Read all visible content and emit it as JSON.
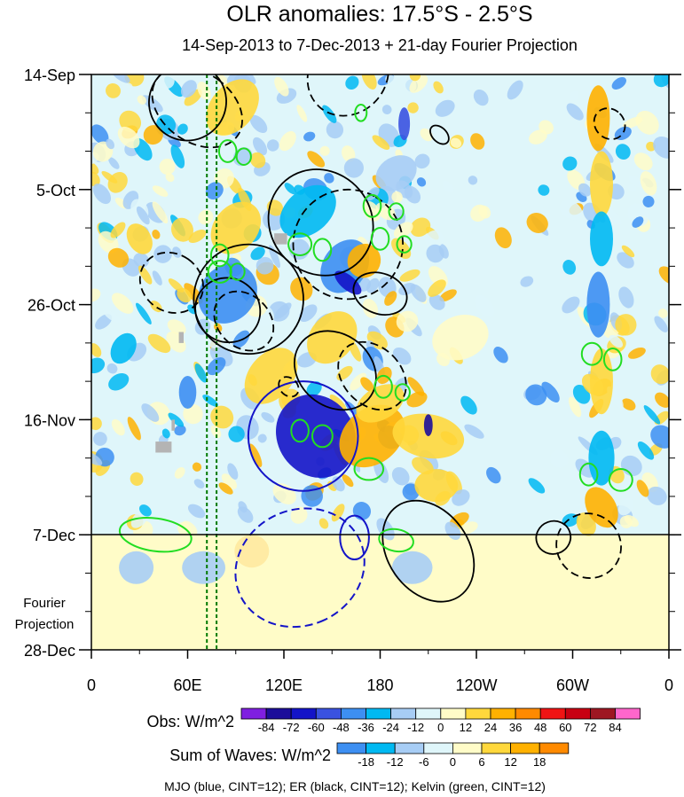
{
  "chart_data": {
    "type": "heatmap",
    "title": "OLR anomalies: 17.5°S - 2.5°S",
    "subtitle": "14-Sep-2013 to 7-Dec-2013 + 21-day Fourier Projection",
    "x_axis": {
      "ticks": [
        {
          "lon": 0,
          "label": "0"
        },
        {
          "lon": 60,
          "label": "60E"
        },
        {
          "lon": 120,
          "label": "120E"
        },
        {
          "lon": 180,
          "label": "180"
        },
        {
          "lon": 240,
          "label": "120W"
        },
        {
          "lon": 300,
          "label": "60W"
        },
        {
          "lon": 360,
          "label": "0"
        }
      ],
      "range": [
        0,
        360
      ]
    },
    "y_axis": {
      "ticks": [
        {
          "day": 0,
          "label": "14-Sep"
        },
        {
          "day": 21,
          "label": "5-Oct"
        },
        {
          "day": 42,
          "label": "26-Oct"
        },
        {
          "day": 63,
          "label": "16-Nov"
        },
        {
          "day": 84,
          "label": "7-Dec"
        },
        {
          "day": 105,
          "label": "28-Dec"
        }
      ],
      "range_dates": [
        "14-Sep-2013",
        "28-Dec-2013"
      ]
    },
    "forecast_divider": "7-Dec",
    "forecast_label": [
      "Fourier",
      "Projection"
    ],
    "reference_longitudes": [
      72,
      78
    ],
    "obs_colorbar": {
      "label": "Obs: W/m^2",
      "levels": [
        "-84",
        "-72",
        "-60",
        "-48",
        "-36",
        "-24",
        "-12",
        "0",
        "12",
        "24",
        "36",
        "48",
        "60",
        "72",
        "84"
      ],
      "colors": [
        "#7f1fe0",
        "#1c0d9a",
        "#1414c8",
        "#3a52e0",
        "#3d8ff2",
        "#00b9f2",
        "#a7cdf5",
        "#dff6fa",
        "#fffcc8",
        "#ffd83c",
        "#ffb100",
        "#ff8a00",
        "#f01414",
        "#c80012",
        "#9e1722",
        "#ff66cc"
      ]
    },
    "waves_colorbar": {
      "label": "Sum of Waves: W/m^2",
      "levels": [
        "-18",
        "-12",
        "-6",
        "0",
        "6",
        "12",
        "18"
      ],
      "colors": [
        "#3d8ff2",
        "#00b9f2",
        "#a7cdf5",
        "#dff6fa",
        "#fffcc8",
        "#ffd83c",
        "#ffb100",
        "#ff8a00"
      ]
    },
    "footer": "MJO (blue, CINT=12); ER (black, CINT=12); Kelvin (green, CINT=12)",
    "wave_contours": {
      "colors": {
        "mjo": "#1414c8",
        "er": "#000000",
        "kelvin": "#22dd22",
        "reference_lines": "#007a00"
      },
      "mjo": [
        {
          "lon": 132,
          "day": 66,
          "rx": 38,
          "ry": 10,
          "rot": 55,
          "dash": false
        },
        {
          "lon": 130,
          "day": 90,
          "rx": 40,
          "ry": 12,
          "rot": 65,
          "dash": true
        },
        {
          "lon": 164,
          "day": 84.5,
          "rx": 10,
          "ry": 4,
          "rot": 0,
          "dash": false
        }
      ],
      "er": [
        {
          "lon": 60,
          "day": 5,
          "rx": 27,
          "ry": 7,
          "rot": -50,
          "dash": false
        },
        {
          "lon": 66,
          "day": 6,
          "rx": 24,
          "ry": 9,
          "rot": -55,
          "dash": true
        },
        {
          "lon": 98,
          "day": 41,
          "rx": 38,
          "ry": 10,
          "rot": -50,
          "dash": false
        },
        {
          "lon": 85,
          "day": 43,
          "rx": 22,
          "ry": 6,
          "rot": -50,
          "dash": false
        },
        {
          "lon": 95,
          "day": 45,
          "rx": 18,
          "ry": 6,
          "rot": -45,
          "dash": true
        },
        {
          "lon": 50,
          "day": 38,
          "rx": 20,
          "ry": 6,
          "rot": -55,
          "dash": true
        },
        {
          "lon": 143,
          "day": 27,
          "rx": 35,
          "ry": 10,
          "rot": -40,
          "dash": false
        },
        {
          "lon": 160,
          "day": 31,
          "rx": 38,
          "ry": 10,
          "rot": -60,
          "dash": true
        },
        {
          "lon": 160,
          "day": 0,
          "rx": 30,
          "ry": 7,
          "rot": -50,
          "dash": true
        },
        {
          "lon": 180,
          "day": 40,
          "rx": 14,
          "ry": 5,
          "rot": -70,
          "dash": false
        },
        {
          "lon": 152,
          "day": 54,
          "rx": 25,
          "ry": 8,
          "rot": -50,
          "dash": false
        },
        {
          "lon": 175,
          "day": 55,
          "rx": 20,
          "ry": 7,
          "rot": -45,
          "dash": true
        },
        {
          "lon": 123,
          "day": 57,
          "rx": 6,
          "ry": 2,
          "rot": -45,
          "dash": true
        },
        {
          "lon": 210,
          "day": 87,
          "rx": 28,
          "ry": 10,
          "rot": -35,
          "dash": false
        },
        {
          "lon": 288,
          "day": 84.5,
          "rx": 12,
          "ry": 3,
          "rot": -20,
          "dash": false
        },
        {
          "lon": 310,
          "day": 86,
          "rx": 22,
          "ry": 6,
          "rot": -45,
          "dash": true
        },
        {
          "lon": 323,
          "day": 9,
          "rx": 10,
          "ry": 3,
          "rot": -45,
          "dash": true
        },
        {
          "lon": 217,
          "day": 11,
          "rx": 5,
          "ry": 2,
          "rot": -45,
          "dash": false
        }
      ],
      "kelvin": [
        {
          "lon": 85,
          "day": 14,
          "rx": 6,
          "ry": 2,
          "rot": 0
        },
        {
          "lon": 95,
          "day": 15,
          "rx": 5,
          "ry": 1.5,
          "rot": 0
        },
        {
          "lon": 175,
          "day": 24,
          "rx": 6,
          "ry": 2,
          "rot": 0
        },
        {
          "lon": 190,
          "day": 25,
          "rx": 5,
          "ry": 1.5,
          "rot": 0
        },
        {
          "lon": 130,
          "day": 31,
          "rx": 8,
          "ry": 2,
          "rot": 0
        },
        {
          "lon": 144,
          "day": 32,
          "rx": 6,
          "ry": 2,
          "rot": 0
        },
        {
          "lon": 180,
          "day": 30,
          "rx": 6,
          "ry": 2,
          "rot": 0
        },
        {
          "lon": 195,
          "day": 31,
          "rx": 5,
          "ry": 1.5,
          "rot": 0
        },
        {
          "lon": 80,
          "day": 33,
          "rx": 6,
          "ry": 2,
          "rot": 0
        },
        {
          "lon": 80,
          "day": 36,
          "rx": 8,
          "ry": 2,
          "rot": 0
        },
        {
          "lon": 91,
          "day": 36,
          "rx": 5,
          "ry": 1.5,
          "rot": 0
        },
        {
          "lon": 130,
          "day": 65,
          "rx": 6,
          "ry": 2,
          "rot": 0
        },
        {
          "lon": 144,
          "day": 66,
          "rx": 7,
          "ry": 2,
          "rot": 0
        },
        {
          "lon": 173,
          "day": 72,
          "rx": 10,
          "ry": 2,
          "rot": 0
        },
        {
          "lon": 182,
          "day": 57,
          "rx": 6,
          "ry": 2,
          "rot": 0
        },
        {
          "lon": 194,
          "day": 58,
          "rx": 5,
          "ry": 1.5,
          "rot": 0
        },
        {
          "lon": 312,
          "day": 51,
          "rx": 7,
          "ry": 2,
          "rot": 0
        },
        {
          "lon": 325,
          "day": 52,
          "rx": 6,
          "ry": 2,
          "rot": 0
        },
        {
          "lon": 310,
          "day": 73,
          "rx": 6,
          "ry": 2,
          "rot": 0
        },
        {
          "lon": 330,
          "day": 74,
          "rx": 8,
          "ry": 2,
          "rot": 0
        },
        {
          "lon": 40,
          "day": 84,
          "rx": 25,
          "ry": 3,
          "rot": 8
        },
        {
          "lon": 190,
          "day": 85,
          "rx": 12,
          "ry": 2,
          "rot": 10
        },
        {
          "lon": 168,
          "day": 7,
          "rx": 4,
          "ry": 1.5,
          "rot": 0
        }
      ]
    },
    "missing_data": [
      {
        "lon": 118,
        "day": 30,
        "w": 8,
        "h": 2
      },
      {
        "lon": 56,
        "day": 48,
        "w": 3,
        "h": 2
      },
      {
        "lon": 51,
        "day": 64,
        "w": 2,
        "h": 2
      },
      {
        "lon": 45,
        "day": 68,
        "w": 10,
        "h": 2
      }
    ],
    "anomaly_features": [
      {
        "lon": 88,
        "day": 6,
        "rx": 22,
        "ry": 4,
        "rot": -50,
        "level": 24
      },
      {
        "lon": 90,
        "day": 28,
        "rx": 20,
        "ry": 4,
        "rot": -50,
        "level": 24
      },
      {
        "lon": 85,
        "day": 40,
        "rx": 22,
        "ry": 5,
        "rot": -48,
        "level": -36
      },
      {
        "lon": 135,
        "day": 25,
        "rx": 22,
        "ry": 4,
        "rot": -40,
        "level": -24
      },
      {
        "lon": 158,
        "day": 35,
        "rx": 20,
        "ry": 4,
        "rot": -55,
        "level": -36
      },
      {
        "lon": 170,
        "day": 34,
        "rx": 12,
        "ry": 3,
        "rot": -60,
        "level": 36
      },
      {
        "lon": 150,
        "day": 48,
        "rx": 20,
        "ry": 4,
        "rot": -50,
        "level": 24
      },
      {
        "lon": 140,
        "day": 66,
        "rx": 30,
        "ry": 7,
        "rot": 55,
        "level": -60
      },
      {
        "lon": 112,
        "day": 55,
        "rx": 22,
        "ry": 4,
        "rot": -50,
        "level": 24
      },
      {
        "lon": 175,
        "day": 66,
        "rx": 25,
        "ry": 5,
        "rot": -40,
        "level": 36
      },
      {
        "lon": 210,
        "day": 66,
        "rx": 25,
        "ry": 4,
        "rot": 10,
        "level": 24
      },
      {
        "lon": 180,
        "day": 60,
        "rx": 18,
        "ry": 3,
        "rot": -30,
        "level": 24
      },
      {
        "lon": 215,
        "day": 75,
        "rx": 15,
        "ry": 3,
        "rot": 0,
        "level": 24
      },
      {
        "lon": 230,
        "day": 48,
        "rx": 20,
        "ry": 4,
        "rot": -20,
        "level": 12
      },
      {
        "lon": 316,
        "day": 8,
        "rx": 8,
        "ry": 6,
        "rot": 0,
        "level": 36
      },
      {
        "lon": 318,
        "day": 20,
        "rx": 8,
        "ry": 6,
        "rot": 0,
        "level": 24
      },
      {
        "lon": 318,
        "day": 30,
        "rx": 8,
        "ry": 5,
        "rot": 0,
        "level": -24
      },
      {
        "lon": 316,
        "day": 42,
        "rx": 8,
        "ry": 6,
        "rot": 0,
        "level": -36
      },
      {
        "lon": 318,
        "day": 56,
        "rx": 8,
        "ry": 6,
        "rot": 0,
        "level": 24
      },
      {
        "lon": 318,
        "day": 70,
        "rx": 9,
        "ry": 5,
        "rot": 0,
        "level": -24
      },
      {
        "lon": 318,
        "day": 79,
        "rx": 10,
        "ry": 4,
        "rot": -30,
        "level": 36
      },
      {
        "lon": 128,
        "day": 88,
        "rx": 14,
        "ry": 4,
        "rot": 60,
        "level": 12
      },
      {
        "lon": 100,
        "day": 87,
        "rx": 12,
        "ry": 3,
        "rot": 0,
        "level": 6
      },
      {
        "lon": 70,
        "day": 90,
        "rx": 15,
        "ry": 3,
        "rot": 0,
        "level": -6
      },
      {
        "lon": 28,
        "day": 90,
        "rx": 12,
        "ry": 3,
        "rot": 0,
        "level": -6
      },
      {
        "lon": 200,
        "day": 90,
        "rx": 14,
        "ry": 3,
        "rot": 0,
        "level": -6
      },
      {
        "lon": 30,
        "day": 30,
        "rx": 8,
        "ry": 3,
        "rot": -30,
        "level": 24
      },
      {
        "lon": 20,
        "day": 50,
        "rx": 8,
        "ry": 3,
        "rot": 30,
        "level": -24
      },
      {
        "lon": 60,
        "day": 58,
        "rx": 6,
        "ry": 3,
        "rot": 0,
        "level": -36
      },
      {
        "lon": 190,
        "day": 18,
        "rx": 15,
        "ry": 3,
        "rot": -30,
        "level": -12
      },
      {
        "lon": 195,
        "day": 9,
        "rx": 4,
        "ry": 3,
        "rot": 0,
        "level": -48
      },
      {
        "lon": 160,
        "day": 38,
        "rx": 5,
        "ry": 3,
        "rot": -50,
        "level": -60
      },
      {
        "lon": 210,
        "day": 64,
        "rx": 3,
        "ry": 2,
        "rot": 0,
        "level": -72
      }
    ]
  }
}
